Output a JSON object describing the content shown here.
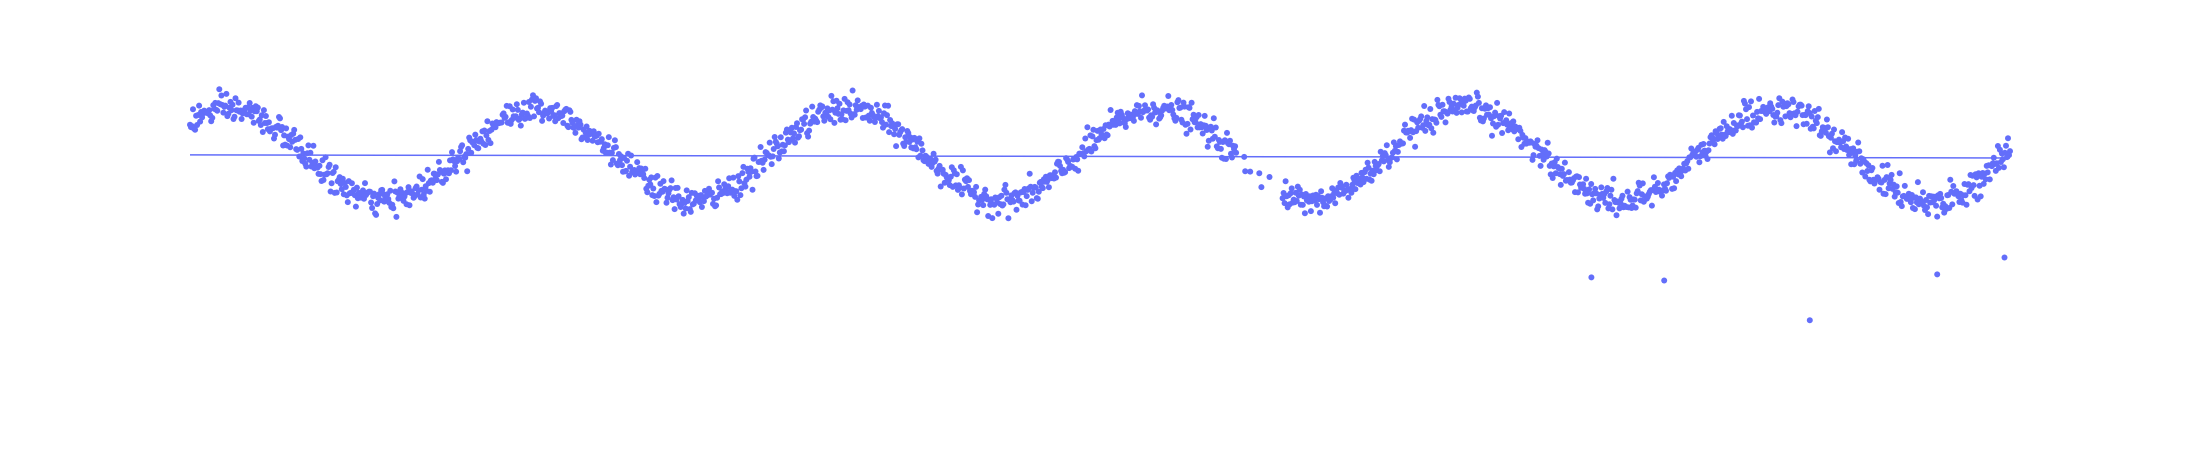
{
  "chart_data": {
    "type": "scatter",
    "title": "",
    "xlabel": "",
    "ylabel": "",
    "grid": false,
    "legend": "none",
    "colors": {
      "points": "#636efa",
      "trend": "#636efa"
    },
    "x_range": [
      0,
      1000
    ],
    "y_range": [
      -1.6,
      0.75
    ],
    "trend_line": {
      "x": [
        0,
        1000
      ],
      "y": [
        0.0,
        -0.02
      ]
    },
    "signal": {
      "amplitude": 0.3,
      "period": 170,
      "phase_degrees": 45,
      "x_start": 0,
      "x_end": 1000,
      "point_count": 1800,
      "gap": [
        575,
        600
      ]
    },
    "outliers": [
      {
        "x": 770,
        "y": -0.8
      },
      {
        "x": 810,
        "y": -0.82
      },
      {
        "x": 890,
        "y": -1.08
      },
      {
        "x": 952,
        "y": -0.31
      },
      {
        "x": 960,
        "y": -0.78
      },
      {
        "x": 997,
        "y": -0.67
      }
    ]
  }
}
